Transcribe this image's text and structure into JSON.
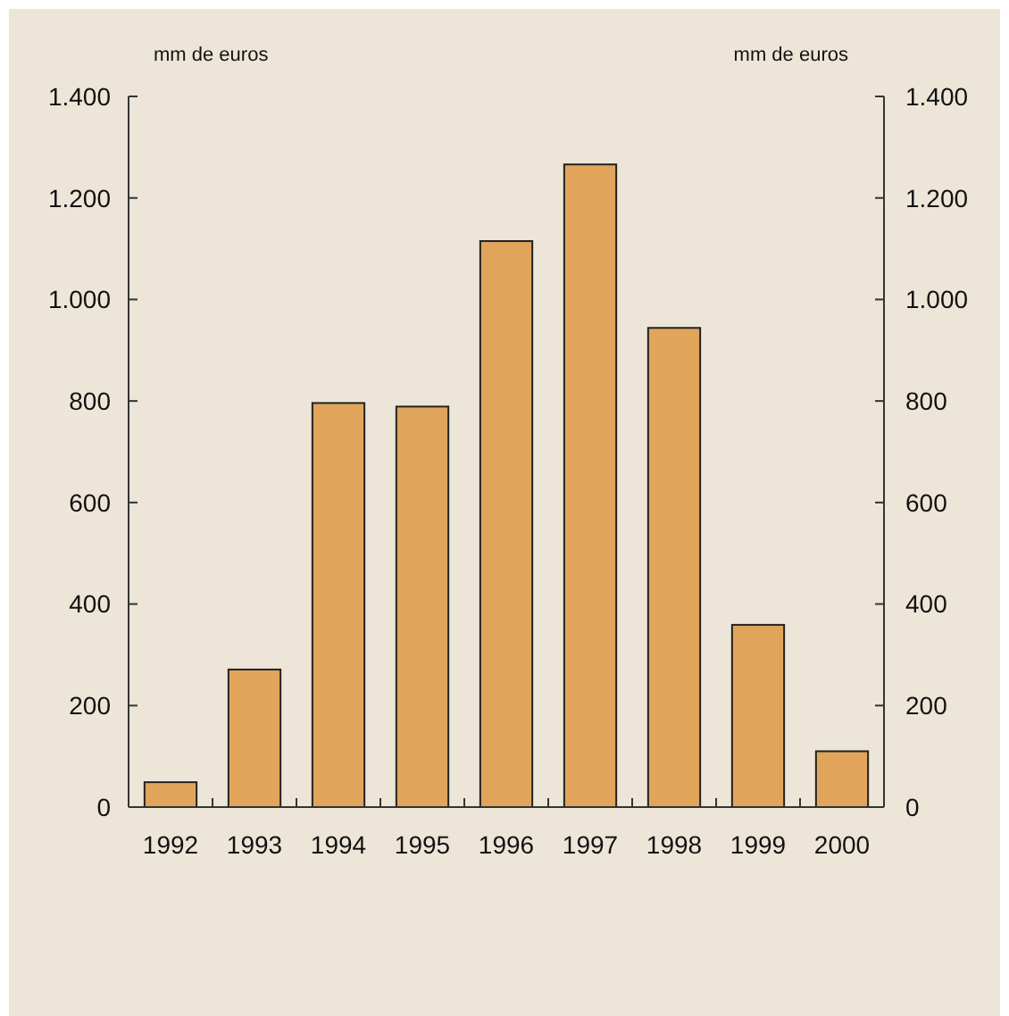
{
  "chart_data": {
    "type": "bar",
    "ylabel": "mm de euros",
    "y2label": "mm de euros",
    "categories": [
      "1992",
      "1993",
      "1994",
      "1995",
      "1996",
      "1997",
      "1998",
      "1999",
      "2000"
    ],
    "series": [
      {
        "color": "#e0a55a",
        "values": [
          49,
          271,
          796,
          789,
          1115,
          1266,
          944,
          359,
          110
        ]
      }
    ],
    "ylim": [
      0,
      1400
    ],
    "yticks": [
      0,
      200,
      400,
      600,
      800,
      {
        "value": 1000,
        "label": "1.000"
      },
      {
        "value": 1200,
        "label": "1.200"
      },
      {
        "value": 1400,
        "label": "1.400"
      }
    ],
    "y2lim": [
      0,
      1400
    ],
    "y2ticks": [
      0,
      200,
      400,
      600,
      800,
      {
        "value": 1000,
        "label": "1.000"
      },
      {
        "value": 1200,
        "label": "1.200"
      },
      {
        "value": 1400,
        "label": "1.400"
      }
    ],
    "grid": false
  }
}
